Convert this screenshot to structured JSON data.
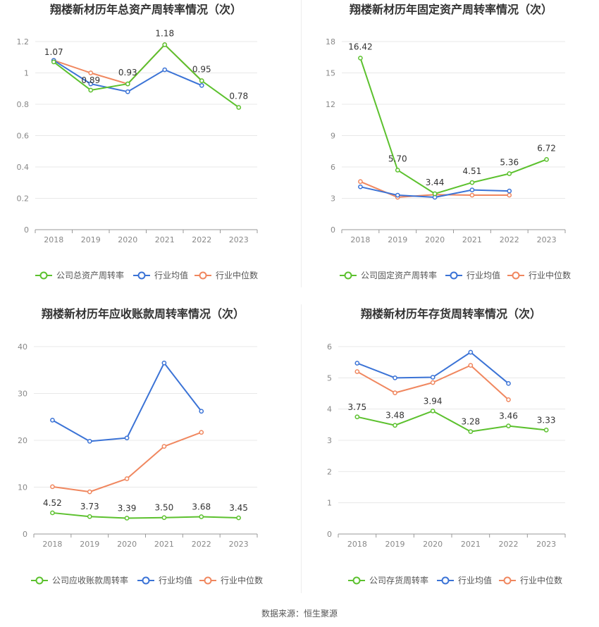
{
  "colors": {
    "company": "#5cc12e",
    "avg": "#3b73d6",
    "median": "#f0875f"
  },
  "legend_labels": {
    "avg": "行业均值",
    "median": "行业中位数"
  },
  "source_text": "数据来源：恒生聚源",
  "chart_data": [
    {
      "type": "line",
      "title": "翔楼新材历年总资产周转率情况（次）",
      "categories": [
        "2018",
        "2019",
        "2020",
        "2021",
        "2022",
        "2023"
      ],
      "yticks": [
        "0",
        "0.2",
        "0.4",
        "0.6",
        "0.8",
        "1",
        "1.2"
      ],
      "ylim": [
        0,
        1.2
      ],
      "grid": true,
      "legend_position": "bottom",
      "series": [
        {
          "name": "公司总资产周转率",
          "key": "company",
          "values": [
            1.07,
            0.89,
            0.93,
            1.18,
            0.95,
            0.78
          ],
          "labels": [
            "1.07",
            "0.89",
            "0.93",
            "1.18",
            "0.95",
            "0.78"
          ]
        },
        {
          "name": "行业均值",
          "key": "avg",
          "values": [
            1.08,
            0.93,
            0.88,
            1.02,
            0.92,
            null
          ]
        },
        {
          "name": "行业中位数",
          "key": "median",
          "values": [
            1.08,
            1.0,
            0.93,
            1.18,
            0.95,
            null
          ]
        }
      ]
    },
    {
      "type": "line",
      "title": "翔楼新材历年固定资产周转率情况（次）",
      "categories": [
        "2018",
        "2019",
        "2020",
        "2021",
        "2022",
        "2023"
      ],
      "yticks": [
        "0",
        "3",
        "6",
        "9",
        "12",
        "15",
        "18"
      ],
      "ylim": [
        0,
        18
      ],
      "grid": true,
      "legend_position": "bottom",
      "series": [
        {
          "name": "公司固定资产周转率",
          "key": "company",
          "values": [
            16.42,
            5.7,
            3.44,
            4.51,
            5.36,
            6.72
          ],
          "labels": [
            "16.42",
            "5.70",
            "3.44",
            "4.51",
            "5.36",
            "6.72"
          ]
        },
        {
          "name": "行业均值",
          "key": "avg",
          "values": [
            4.1,
            3.3,
            3.1,
            3.8,
            3.7,
            null
          ]
        },
        {
          "name": "行业中位数",
          "key": "median",
          "values": [
            4.6,
            3.1,
            3.35,
            3.3,
            3.3,
            null
          ]
        }
      ]
    },
    {
      "type": "line",
      "title": "翔楼新材历年应收账款周转率情况（次）",
      "categories": [
        "2018",
        "2019",
        "2020",
        "2021",
        "2022",
        "2023"
      ],
      "yticks": [
        "0",
        "10",
        "20",
        "30",
        "40"
      ],
      "ylim": [
        0,
        40
      ],
      "grid": true,
      "legend_position": "bottom",
      "series": [
        {
          "name": "公司应收账款周转率",
          "key": "company",
          "values": [
            4.52,
            3.73,
            3.39,
            3.5,
            3.68,
            3.45
          ],
          "labels": [
            "4.52",
            "3.73",
            "3.39",
            "3.50",
            "3.68",
            "3.45"
          ]
        },
        {
          "name": "行业均值",
          "key": "avg",
          "values": [
            24.3,
            19.8,
            20.5,
            36.5,
            26.2,
            null
          ]
        },
        {
          "name": "行业中位数",
          "key": "median",
          "values": [
            10.1,
            9.0,
            11.8,
            18.7,
            21.7,
            null
          ]
        }
      ]
    },
    {
      "type": "line",
      "title": "翔楼新材历年存货周转率情况（次）",
      "categories": [
        "2018",
        "2019",
        "2020",
        "2021",
        "2022",
        "2023"
      ],
      "yticks": [
        "0",
        "1",
        "2",
        "3",
        "4",
        "5",
        "6"
      ],
      "ylim": [
        0,
        6
      ],
      "grid": true,
      "legend_position": "bottom",
      "series": [
        {
          "name": "公司存货周转率",
          "key": "company",
          "values": [
            3.75,
            3.48,
            3.94,
            3.28,
            3.46,
            3.33
          ],
          "labels": [
            "3.75",
            "3.48",
            "3.94",
            "3.28",
            "3.46",
            "3.33"
          ]
        },
        {
          "name": "行业均值",
          "key": "avg",
          "values": [
            5.47,
            5.0,
            5.02,
            5.82,
            4.82,
            null
          ]
        },
        {
          "name": "行业中位数",
          "key": "median",
          "values": [
            5.2,
            4.52,
            4.85,
            5.4,
            4.3,
            null
          ]
        }
      ]
    }
  ]
}
